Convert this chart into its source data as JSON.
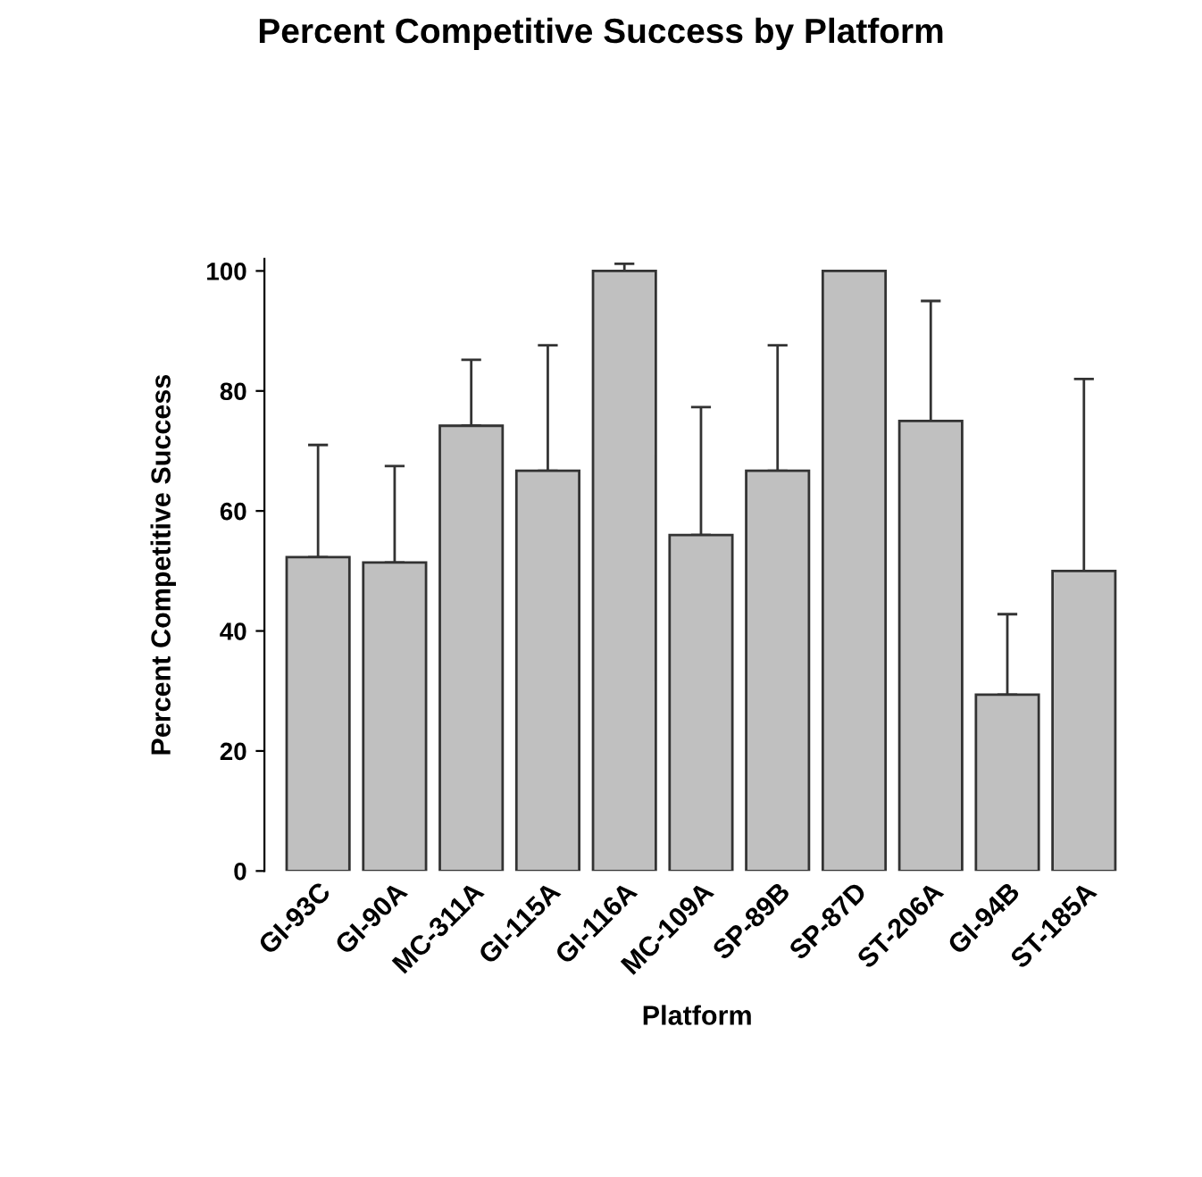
{
  "chart_data": {
    "type": "bar",
    "title": "Percent Competitive Success by Platform",
    "xlabel": "Platform",
    "ylabel": "Percent Competitive Success",
    "categories": [
      "GI-93C",
      "GI-90A",
      "MC-311A",
      "GI-115A",
      "GI-116A",
      "MC-109A",
      "SP-89B",
      "SP-87D",
      "ST-206A",
      "GI-94B",
      "ST-185A"
    ],
    "values": [
      52.3,
      51.4,
      74.2,
      66.7,
      100,
      56,
      66.7,
      100,
      75,
      29.4,
      50
    ],
    "errors": [
      [
        52.3,
        71
      ],
      [
        51.4,
        67.5
      ],
      [
        74.2,
        85.2
      ],
      [
        66.7,
        87.6
      ],
      [
        100,
        101.2
      ],
      [
        56,
        77.3
      ],
      [
        66.7,
        87.6
      ],
      null,
      [
        75,
        95
      ],
      [
        29.4,
        42.8
      ],
      [
        50,
        82
      ]
    ],
    "color": "#c0c0c0",
    "ylim": [
      0,
      102
    ],
    "yticks": [
      0,
      20,
      40,
      60,
      80,
      100
    ],
    "grid": false,
    "legend": false
  }
}
